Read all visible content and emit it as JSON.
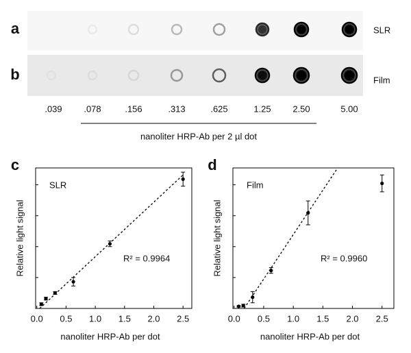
{
  "blot": {
    "rows": [
      {
        "letter": "a",
        "label": "SLR"
      },
      {
        "letter": "b",
        "label": "Film"
      }
    ],
    "doses": [
      ".039",
      ".078",
      ".156",
      ".313",
      ".625",
      "1.25",
      "2.50",
      "5.00"
    ],
    "caption": "nanoliter HRP-Ab per 2 µl dot"
  },
  "chart_data": [
    {
      "type": "scatter",
      "panel": "c",
      "annotation": "SLR",
      "r2_label": "R² = 0.9964",
      "xlabel": "nanoliter HRP-Ab per dot",
      "ylabel": "Relative light signal",
      "x": [
        0.078,
        0.156,
        0.313,
        0.625,
        1.25,
        2.5
      ],
      "values": [
        0.03,
        0.07,
        0.11,
        0.19,
        0.46,
        0.92
      ],
      "errors": [
        0.01,
        0.01,
        0.01,
        0.03,
        0.02,
        0.05
      ],
      "fit": {
        "x": [
          0.05,
          2.5
        ],
        "y": [
          0.0,
          0.95
        ]
      },
      "color": "#000000",
      "xlim": [
        -0.02,
        2.65
      ],
      "ylim": [
        0,
        1
      ],
      "xticks": [
        {
          "value": 0,
          "label": "0.0"
        },
        {
          "value": 0.5,
          "label": "0.5"
        },
        {
          "value": 1,
          "label": "1.0"
        },
        {
          "value": 1.5,
          "label": "1.5"
        },
        {
          "value": 2,
          "label": "2.0"
        },
        {
          "value": 2.5,
          "label": "2.5"
        }
      ],
      "yticks": [
        0.22,
        0.44,
        0.66,
        0.88
      ]
    },
    {
      "type": "scatter",
      "panel": "d",
      "annotation": "Film",
      "r2_label": "R² = 0.9960",
      "xlabel": "nanoliter HRP-Ab per dot",
      "ylabel": "Relative light signal",
      "x": [
        0.078,
        0.156,
        0.313,
        0.625,
        1.25,
        2.5
      ],
      "values": [
        0.015,
        0.02,
        0.08,
        0.27,
        0.68,
        0.89
      ],
      "errors": [
        0.005,
        0.01,
        0.04,
        0.02,
        0.085,
        0.06
      ],
      "fit": {
        "x": [
          0.17,
          1.75
        ],
        "y": [
          0.0,
          1.0
        ]
      },
      "color": "#000000",
      "xlim": [
        -0.02,
        2.7
      ],
      "ylim": [
        0,
        1
      ],
      "xticks": [
        {
          "value": 0,
          "label": "0.0"
        },
        {
          "value": 0.5,
          "label": "0.5"
        },
        {
          "value": 1,
          "label": "1.0"
        },
        {
          "value": 1.5,
          "label": "1.5"
        },
        {
          "value": 2,
          "label": "2.0"
        },
        {
          "value": 2.5,
          "label": "2.5"
        }
      ],
      "yticks": [
        0.22,
        0.44,
        0.66,
        0.88
      ]
    }
  ]
}
